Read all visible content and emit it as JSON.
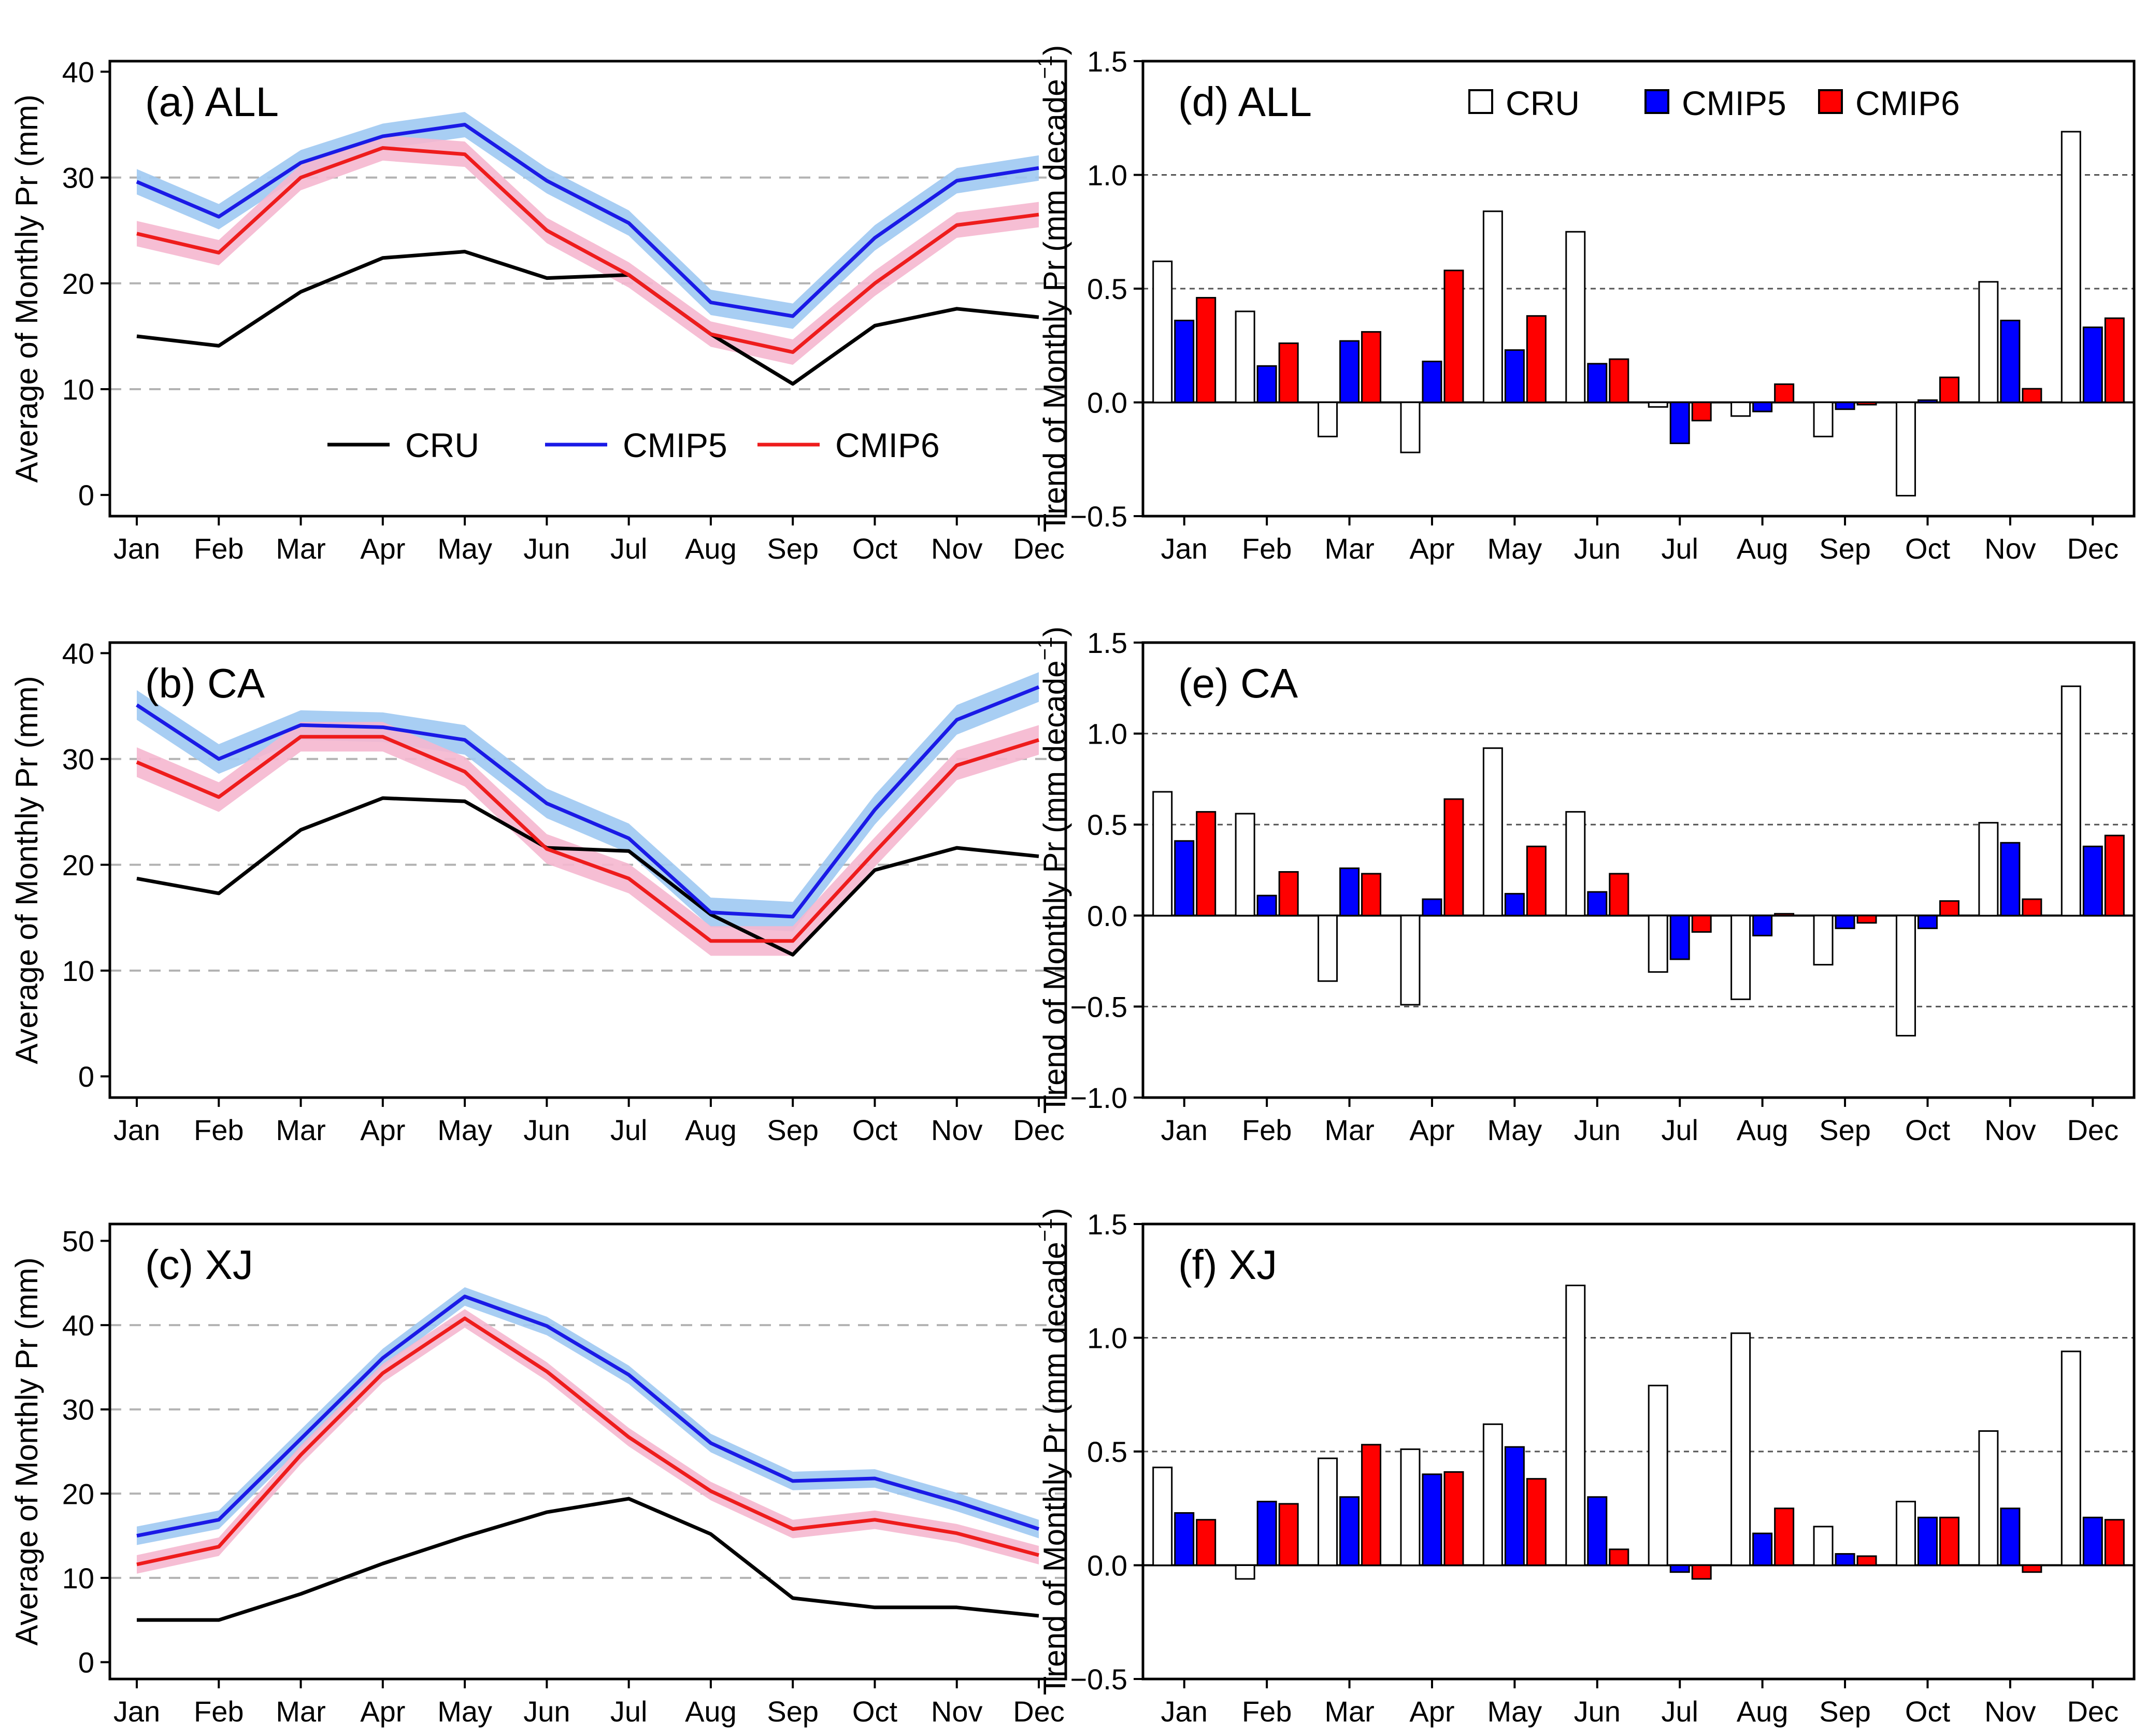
{
  "months": [
    "Jan",
    "Feb",
    "Mar",
    "Apr",
    "May",
    "Jun",
    "Jul",
    "Aug",
    "Sep",
    "Oct",
    "Nov",
    "Dec"
  ],
  "colors": {
    "CRU": "#000000",
    "CMIP5": "#1a1ae6",
    "CMIP6": "#ee1c1c",
    "CMIP5_band": "#9ec9f2",
    "CMIP6_band": "#f5b7cf",
    "bar_CRU": "#ffffff",
    "bar_CMIP5": "#0000ff",
    "bar_CMIP6": "#ff0000"
  },
  "chart_data": [
    {
      "id": "a",
      "type": "line",
      "title": "(a) ALL",
      "ylabel": "Average of Monthly Pr (mm)",
      "ylim": [
        -2,
        41
      ],
      "yticks": [
        0,
        10,
        20,
        30,
        40
      ],
      "gridlines": [
        10,
        20,
        30
      ],
      "legend": {
        "position": "bottom-center",
        "entries": [
          "CRU",
          "CMIP5",
          "CMIP6"
        ]
      },
      "series": [
        {
          "name": "CRU",
          "values": [
            15.0,
            14.1,
            19.2,
            22.4,
            23.0,
            20.5,
            20.8,
            15.2,
            10.5,
            16.0,
            17.6,
            16.8
          ]
        },
        {
          "name": "CMIP5",
          "values": [
            29.6,
            26.3,
            31.4,
            33.9,
            35.0,
            29.7,
            25.7,
            18.2,
            16.9,
            24.3,
            29.7,
            30.9
          ],
          "band": 1.2
        },
        {
          "name": "CMIP6",
          "values": [
            24.7,
            22.9,
            30.0,
            32.8,
            32.2,
            25.0,
            20.8,
            15.2,
            13.5,
            20.0,
            25.5,
            26.5
          ],
          "band": 1.2
        }
      ]
    },
    {
      "id": "b",
      "type": "line",
      "title": "(b) CA",
      "ylabel": "Average of Monthly Pr (mm)",
      "ylim": [
        -2,
        41
      ],
      "yticks": [
        0,
        10,
        20,
        30,
        40
      ],
      "gridlines": [
        10,
        20,
        30
      ],
      "series": [
        {
          "name": "CRU",
          "values": [
            18.7,
            17.3,
            23.3,
            26.3,
            26.0,
            21.6,
            21.3,
            15.3,
            11.5,
            19.5,
            21.6,
            20.8
          ]
        },
        {
          "name": "CMIP5",
          "values": [
            35.1,
            30.0,
            33.2,
            33.0,
            31.8,
            25.8,
            22.5,
            15.5,
            15.1,
            25.2,
            33.7,
            36.8
          ],
          "band": 1.4
        },
        {
          "name": "CMIP6",
          "values": [
            29.7,
            26.4,
            32.1,
            32.1,
            28.8,
            21.5,
            18.7,
            12.8,
            12.8,
            21.2,
            29.4,
            31.8
          ],
          "band": 1.4
        }
      ]
    },
    {
      "id": "c",
      "type": "line",
      "title": "(c) XJ",
      "ylabel": "Average of Monthly Pr (mm)",
      "ylim": [
        -2,
        52
      ],
      "yticks": [
        0,
        10,
        20,
        30,
        40,
        50
      ],
      "gridlines": [
        10,
        20,
        30,
        40
      ],
      "series": [
        {
          "name": "CRU",
          "values": [
            5.0,
            5.0,
            8.1,
            11.7,
            14.9,
            17.8,
            19.4,
            15.2,
            7.6,
            6.5,
            6.5,
            5.5
          ]
        },
        {
          "name": "CMIP5",
          "values": [
            15.0,
            16.9,
            26.5,
            36.1,
            43.4,
            39.9,
            34.1,
            26.0,
            21.5,
            21.8,
            19.0,
            15.8
          ],
          "band": 1.1
        },
        {
          "name": "CMIP6",
          "values": [
            11.6,
            13.7,
            24.6,
            34.3,
            40.8,
            34.5,
            26.7,
            20.3,
            15.8,
            16.9,
            15.3,
            12.7
          ],
          "band": 1.1
        }
      ]
    },
    {
      "id": "d",
      "type": "bar",
      "title": "(d) ALL",
      "ylabel": "Trend of Monthly Pr  (mm decade",
      "ylabel_sup": "−1",
      "ylabel_close": ")",
      "ylim": [
        -0.5,
        1.5
      ],
      "yticks": [
        -0.5,
        0.0,
        0.5,
        1.0,
        1.5
      ],
      "yticklabels": [
        "−0.5",
        "0.0",
        "0.5",
        "1.0",
        "1.5"
      ],
      "gridlines": [
        0.5,
        1.0
      ],
      "legend": {
        "position": "top",
        "entries": [
          "CRU",
          "CMIP5",
          "CMIP6"
        ]
      },
      "series": [
        {
          "name": "CRU",
          "values": [
            0.62,
            0.4,
            -0.15,
            -0.22,
            0.84,
            0.75,
            -0.02,
            -0.06,
            -0.15,
            -0.41,
            0.53,
            1.19
          ]
        },
        {
          "name": "CMIP5",
          "values": [
            0.36,
            0.16,
            0.27,
            0.18,
            0.23,
            0.17,
            -0.18,
            -0.04,
            -0.03,
            0.01,
            0.36,
            0.33
          ]
        },
        {
          "name": "CMIP6",
          "values": [
            0.46,
            0.26,
            0.31,
            0.58,
            0.38,
            0.19,
            -0.08,
            0.08,
            -0.01,
            0.11,
            0.06,
            0.37
          ]
        }
      ]
    },
    {
      "id": "e",
      "type": "bar",
      "title": "(e) CA",
      "ylabel": "Trend of Monthly Pr  (mm decade",
      "ylabel_sup": "−1",
      "ylabel_close": ")",
      "ylim": [
        -1.0,
        1.5
      ],
      "yticks": [
        -1.0,
        -0.5,
        0.0,
        0.5,
        1.0,
        1.5
      ],
      "yticklabels": [
        "−1.0",
        "−0.5",
        "0.0",
        "0.5",
        "1.0",
        "1.5"
      ],
      "gridlines": [
        -0.5,
        0.5,
        1.0
      ],
      "series": [
        {
          "name": "CRU",
          "values": [
            0.68,
            0.56,
            -0.36,
            -0.49,
            0.92,
            0.57,
            -0.31,
            -0.46,
            -0.27,
            -0.66,
            0.51,
            1.26
          ]
        },
        {
          "name": "CMIP5",
          "values": [
            0.41,
            0.11,
            0.26,
            0.09,
            0.12,
            0.13,
            -0.24,
            -0.11,
            -0.07,
            -0.07,
            0.4,
            0.38
          ]
        },
        {
          "name": "CMIP6",
          "values": [
            0.57,
            0.24,
            0.23,
            0.64,
            0.38,
            0.23,
            -0.09,
            0.01,
            -0.04,
            0.08,
            0.09,
            0.44
          ]
        }
      ]
    },
    {
      "id": "f",
      "type": "bar",
      "title": "(f) XJ",
      "ylabel": "Trend of Monthly Pr  (mm decade",
      "ylabel_sup": "−1",
      "ylabel_close": ")",
      "ylim": [
        -0.5,
        1.5
      ],
      "yticks": [
        -0.5,
        0.0,
        0.5,
        1.0,
        1.5
      ],
      "yticklabels": [
        "−0.5",
        "0.0",
        "0.5",
        "1.0",
        "1.5"
      ],
      "gridlines": [
        0.5,
        1.0
      ],
      "series": [
        {
          "name": "CRU",
          "values": [
            0.43,
            -0.06,
            0.47,
            0.51,
            0.62,
            1.23,
            0.79,
            1.02,
            0.17,
            0.28,
            0.59,
            0.94
          ]
        },
        {
          "name": "CMIP5",
          "values": [
            0.23,
            0.28,
            0.3,
            0.4,
            0.52,
            0.3,
            -0.03,
            0.14,
            0.05,
            0.21,
            0.25,
            0.21
          ]
        },
        {
          "name": "CMIP6",
          "values": [
            0.2,
            0.27,
            0.53,
            0.41,
            0.38,
            0.07,
            -0.06,
            0.25,
            0.04,
            0.21,
            -0.03,
            0.2
          ]
        }
      ]
    }
  ]
}
